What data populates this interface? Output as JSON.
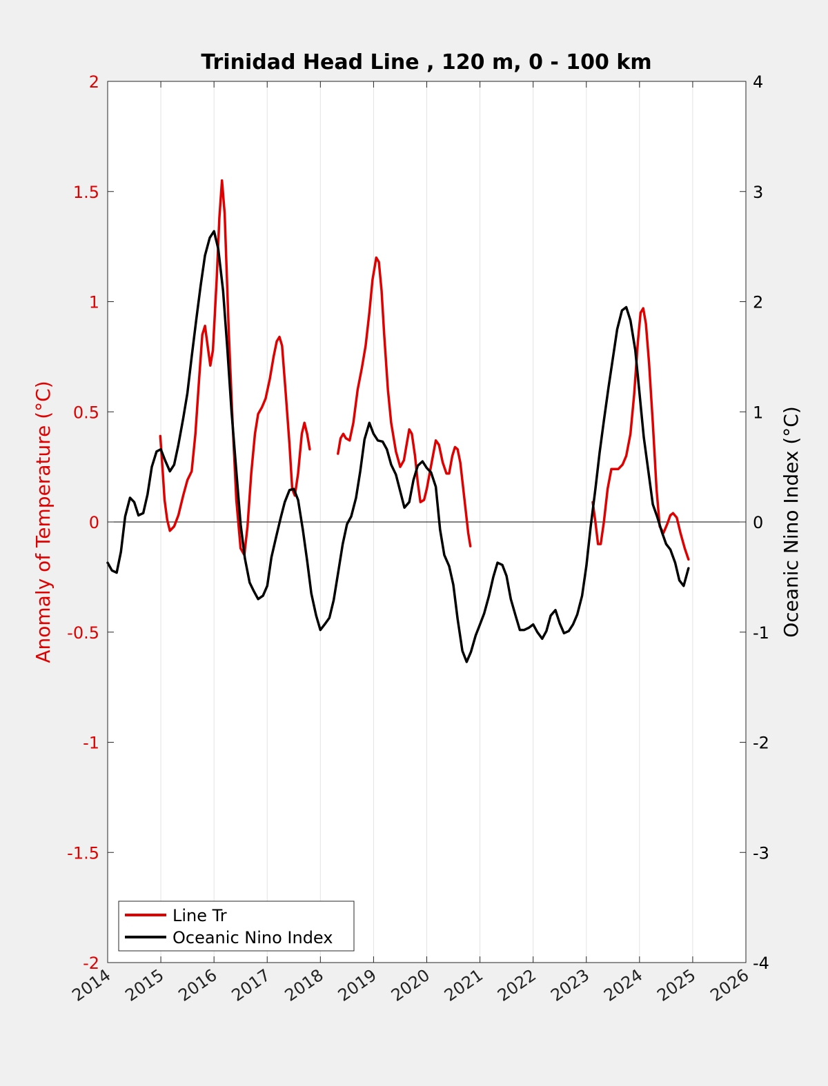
{
  "chart_data": {
    "type": "line",
    "title": "Trinidad Head Line , 120 m, 0 - 100 km",
    "ylabel": "Anomaly of Temperature (°C)",
    "y2label": "Oceanic Nino Index (°C)",
    "xlim": [
      2014,
      2026
    ],
    "ylim": [
      -2,
      2
    ],
    "y2lim": [
      -4,
      4
    ],
    "x_ticks": [
      "2014",
      "2015",
      "2016",
      "2017",
      "2018",
      "2019",
      "2020",
      "2021",
      "2022",
      "2023",
      "2024",
      "2025",
      "2026"
    ],
    "y_ticks": [
      "-2",
      "-1.5",
      "-1",
      "-0.5",
      "0",
      "0.5",
      "1",
      "1.5",
      "2"
    ],
    "y2_ticks": [
      "-4",
      "-3",
      "-2",
      "-1",
      "0",
      "1",
      "2",
      "3",
      "4"
    ],
    "grid": "vertical",
    "legend_position": "bottom-left",
    "series": [
      {
        "name": "Line Tr",
        "color": "#e00000",
        "axis": "left",
        "segments": [
          [
            [
              2014.99,
              0.39
            ],
            [
              2015.03,
              0.25
            ],
            [
              2015.07,
              0.1
            ],
            [
              2015.12,
              0.01
            ],
            [
              2015.17,
              -0.04
            ],
            [
              2015.25,
              -0.02
            ],
            [
              2015.33,
              0.03
            ],
            [
              2015.42,
              0.12
            ],
            [
              2015.5,
              0.19
            ],
            [
              2015.58,
              0.23
            ],
            [
              2015.65,
              0.4
            ],
            [
              2015.72,
              0.65
            ],
            [
              2015.78,
              0.85
            ],
            [
              2015.83,
              0.89
            ],
            [
              2015.88,
              0.8
            ],
            [
              2015.93,
              0.71
            ],
            [
              2015.98,
              0.78
            ],
            [
              2016.05,
              1.1
            ],
            [
              2016.1,
              1.38
            ],
            [
              2016.15,
              1.55
            ],
            [
              2016.2,
              1.4
            ],
            [
              2016.28,
              0.85
            ],
            [
              2016.35,
              0.45
            ],
            [
              2016.42,
              0.1
            ],
            [
              2016.5,
              -0.12
            ],
            [
              2016.57,
              -0.15
            ],
            [
              2016.63,
              -0.02
            ],
            [
              2016.7,
              0.22
            ],
            [
              2016.77,
              0.4
            ],
            [
              2016.83,
              0.49
            ],
            [
              2016.9,
              0.52
            ],
            [
              2016.97,
              0.56
            ],
            [
              2017.05,
              0.65
            ],
            [
              2017.12,
              0.75
            ],
            [
              2017.18,
              0.82
            ],
            [
              2017.23,
              0.84
            ],
            [
              2017.28,
              0.8
            ],
            [
              2017.35,
              0.58
            ],
            [
              2017.42,
              0.35
            ],
            [
              2017.47,
              0.15
            ],
            [
              2017.52,
              0.12
            ],
            [
              2017.58,
              0.22
            ],
            [
              2017.65,
              0.4
            ],
            [
              2017.7,
              0.45
            ],
            [
              2017.75,
              0.4
            ],
            [
              2017.8,
              0.33
            ]
          ],
          [
            [
              2018.33,
              0.31
            ],
            [
              2018.38,
              0.38
            ],
            [
              2018.43,
              0.4
            ],
            [
              2018.48,
              0.38
            ],
            [
              2018.55,
              0.37
            ],
            [
              2018.62,
              0.45
            ],
            [
              2018.7,
              0.6
            ],
            [
              2018.78,
              0.7
            ],
            [
              2018.85,
              0.8
            ],
            [
              2018.92,
              0.95
            ],
            [
              2018.98,
              1.1
            ],
            [
              2019.05,
              1.2
            ],
            [
              2019.1,
              1.18
            ],
            [
              2019.15,
              1.05
            ],
            [
              2019.2,
              0.85
            ],
            [
              2019.27,
              0.6
            ],
            [
              2019.33,
              0.45
            ],
            [
              2019.42,
              0.32
            ],
            [
              2019.5,
              0.25
            ],
            [
              2019.57,
              0.28
            ],
            [
              2019.62,
              0.35
            ],
            [
              2019.67,
              0.42
            ],
            [
              2019.72,
              0.4
            ],
            [
              2019.78,
              0.3
            ],
            [
              2019.83,
              0.18
            ],
            [
              2019.88,
              0.09
            ],
            [
              2019.95,
              0.1
            ],
            [
              2020.0,
              0.15
            ],
            [
              2020.1,
              0.28
            ],
            [
              2020.17,
              0.37
            ],
            [
              2020.23,
              0.35
            ],
            [
              2020.3,
              0.27
            ],
            [
              2020.37,
              0.22
            ],
            [
              2020.42,
              0.22
            ],
            [
              2020.48,
              0.3
            ],
            [
              2020.53,
              0.34
            ],
            [
              2020.58,
              0.33
            ],
            [
              2020.63,
              0.27
            ],
            [
              2020.7,
              0.12
            ],
            [
              2020.78,
              -0.05
            ],
            [
              2020.82,
              -0.11
            ]
          ],
          [
            [
              2023.12,
              0.09
            ],
            [
              2023.17,
              0.0
            ],
            [
              2023.22,
              -0.1
            ],
            [
              2023.27,
              -0.1
            ],
            [
              2023.33,
              0.0
            ],
            [
              2023.4,
              0.15
            ],
            [
              2023.47,
              0.24
            ],
            [
              2023.53,
              0.24
            ],
            [
              2023.6,
              0.24
            ],
            [
              2023.68,
              0.26
            ],
            [
              2023.75,
              0.3
            ],
            [
              2023.83,
              0.4
            ],
            [
              2023.9,
              0.58
            ],
            [
              2023.97,
              0.82
            ],
            [
              2024.02,
              0.95
            ],
            [
              2024.07,
              0.97
            ],
            [
              2024.12,
              0.9
            ],
            [
              2024.18,
              0.72
            ],
            [
              2024.25,
              0.45
            ],
            [
              2024.32,
              0.15
            ],
            [
              2024.38,
              -0.02
            ],
            [
              2024.45,
              -0.05
            ],
            [
              2024.52,
              -0.01
            ],
            [
              2024.58,
              0.03
            ],
            [
              2024.63,
              0.04
            ],
            [
              2024.7,
              0.02
            ],
            [
              2024.77,
              -0.05
            ],
            [
              2024.85,
              -0.12
            ],
            [
              2024.92,
              -0.17
            ]
          ]
        ]
      },
      {
        "name": "Oceanic Nino Index",
        "color": "#000000",
        "axis": "right",
        "segments": [
          [
            [
              2014.0,
              -0.37
            ],
            [
              2014.08,
              -0.44
            ],
            [
              2014.17,
              -0.46
            ],
            [
              2014.25,
              -0.27
            ],
            [
              2014.33,
              0.05
            ],
            [
              2014.42,
              0.22
            ],
            [
              2014.5,
              0.18
            ],
            [
              2014.58,
              0.06
            ],
            [
              2014.67,
              0.08
            ],
            [
              2014.75,
              0.25
            ],
            [
              2014.83,
              0.5
            ],
            [
              2014.92,
              0.64
            ],
            [
              2015.0,
              0.66
            ],
            [
              2015.08,
              0.56
            ],
            [
              2015.17,
              0.46
            ],
            [
              2015.25,
              0.52
            ],
            [
              2015.33,
              0.7
            ],
            [
              2015.42,
              0.94
            ],
            [
              2015.5,
              1.17
            ],
            [
              2015.58,
              1.5
            ],
            [
              2015.67,
              1.85
            ],
            [
              2015.75,
              2.15
            ],
            [
              2015.83,
              2.42
            ],
            [
              2015.92,
              2.58
            ],
            [
              2016.0,
              2.64
            ],
            [
              2016.08,
              2.48
            ],
            [
              2016.17,
              2.1
            ],
            [
              2016.25,
              1.58
            ],
            [
              2016.33,
              1.0
            ],
            [
              2016.42,
              0.46
            ],
            [
              2016.5,
              -0.02
            ],
            [
              2016.58,
              -0.33
            ],
            [
              2016.67,
              -0.55
            ],
            [
              2016.75,
              -0.63
            ],
            [
              2016.83,
              -0.7
            ],
            [
              2016.92,
              -0.67
            ],
            [
              2017.0,
              -0.58
            ],
            [
              2017.08,
              -0.32
            ],
            [
              2017.17,
              -0.13
            ],
            [
              2017.25,
              0.03
            ],
            [
              2017.33,
              0.18
            ],
            [
              2017.42,
              0.29
            ],
            [
              2017.5,
              0.3
            ],
            [
              2017.58,
              0.2
            ],
            [
              2017.67,
              -0.07
            ],
            [
              2017.75,
              -0.35
            ],
            [
              2017.83,
              -0.65
            ],
            [
              2017.92,
              -0.85
            ],
            [
              2018.0,
              -0.98
            ],
            [
              2018.08,
              -0.93
            ],
            [
              2018.17,
              -0.87
            ],
            [
              2018.25,
              -0.71
            ],
            [
              2018.33,
              -0.47
            ],
            [
              2018.42,
              -0.2
            ],
            [
              2018.5,
              -0.02
            ],
            [
              2018.58,
              0.05
            ],
            [
              2018.67,
              0.22
            ],
            [
              2018.75,
              0.46
            ],
            [
              2018.83,
              0.75
            ],
            [
              2018.92,
              0.9
            ],
            [
              2019.0,
              0.8
            ],
            [
              2019.08,
              0.74
            ],
            [
              2019.17,
              0.73
            ],
            [
              2019.25,
              0.66
            ],
            [
              2019.33,
              0.52
            ],
            [
              2019.42,
              0.43
            ],
            [
              2019.5,
              0.28
            ],
            [
              2019.58,
              0.13
            ],
            [
              2019.67,
              0.18
            ],
            [
              2019.75,
              0.38
            ],
            [
              2019.83,
              0.51
            ],
            [
              2019.92,
              0.55
            ],
            [
              2020.0,
              0.49
            ],
            [
              2020.08,
              0.45
            ],
            [
              2020.17,
              0.32
            ],
            [
              2020.25,
              -0.07
            ],
            [
              2020.33,
              -0.3
            ],
            [
              2020.42,
              -0.4
            ],
            [
              2020.5,
              -0.57
            ],
            [
              2020.58,
              -0.88
            ],
            [
              2020.67,
              -1.17
            ],
            [
              2020.75,
              -1.27
            ],
            [
              2020.83,
              -1.18
            ],
            [
              2020.92,
              -1.03
            ],
            [
              2021.0,
              -0.93
            ],
            [
              2021.08,
              -0.83
            ],
            [
              2021.17,
              -0.67
            ],
            [
              2021.25,
              -0.5
            ],
            [
              2021.33,
              -0.37
            ],
            [
              2021.42,
              -0.39
            ],
            [
              2021.5,
              -0.49
            ],
            [
              2021.58,
              -0.7
            ],
            [
              2021.67,
              -0.85
            ],
            [
              2021.75,
              -0.98
            ],
            [
              2021.83,
              -0.98
            ],
            [
              2021.92,
              -0.96
            ],
            [
              2022.0,
              -0.93
            ],
            [
              2022.08,
              -1.0
            ],
            [
              2022.17,
              -1.06
            ],
            [
              2022.25,
              -0.99
            ],
            [
              2022.33,
              -0.85
            ],
            [
              2022.42,
              -0.8
            ],
            [
              2022.5,
              -0.92
            ],
            [
              2022.58,
              -1.01
            ],
            [
              2022.67,
              -0.99
            ],
            [
              2022.75,
              -0.93
            ],
            [
              2022.83,
              -0.84
            ],
            [
              2022.92,
              -0.67
            ],
            [
              2023.0,
              -0.4
            ],
            [
              2023.08,
              -0.05
            ],
            [
              2023.17,
              0.3
            ],
            [
              2023.25,
              0.63
            ],
            [
              2023.33,
              0.92
            ],
            [
              2023.42,
              1.23
            ],
            [
              2023.5,
              1.49
            ],
            [
              2023.58,
              1.75
            ],
            [
              2023.67,
              1.92
            ],
            [
              2023.75,
              1.95
            ],
            [
              2023.83,
              1.83
            ],
            [
              2023.92,
              1.56
            ],
            [
              2024.0,
              1.17
            ],
            [
              2024.08,
              0.77
            ],
            [
              2024.17,
              0.45
            ],
            [
              2024.25,
              0.16
            ],
            [
              2024.33,
              0.05
            ],
            [
              2024.42,
              -0.09
            ],
            [
              2024.5,
              -0.2
            ],
            [
              2024.58,
              -0.25
            ],
            [
              2024.67,
              -0.37
            ],
            [
              2024.75,
              -0.53
            ],
            [
              2024.83,
              -0.58
            ],
            [
              2024.92,
              -0.42
            ]
          ]
        ]
      }
    ]
  }
}
